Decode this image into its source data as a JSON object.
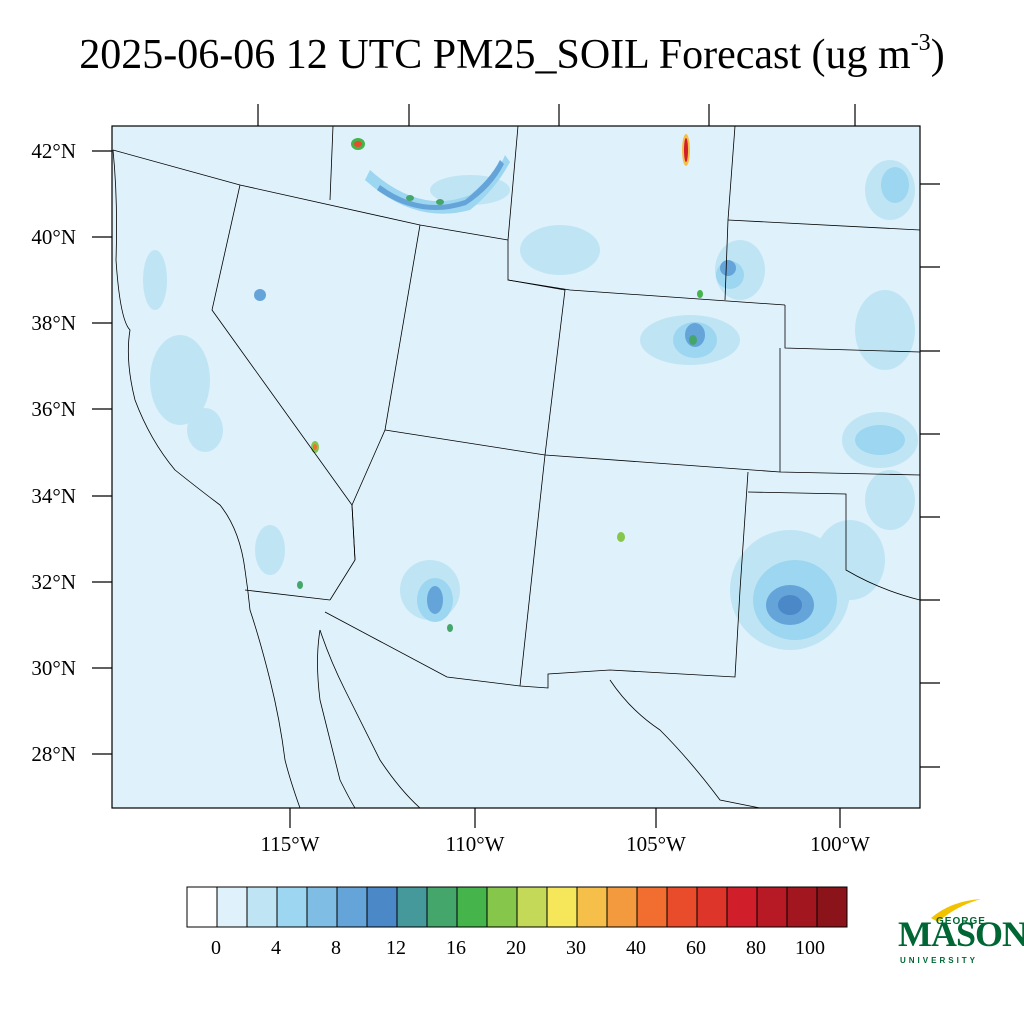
{
  "title": {
    "main": "2025-06-06 12 UTC PM25_SOIL Forecast (ug m",
    "exponent": "-3",
    "close": ")"
  },
  "map": {
    "lat_labels": [
      "42°N",
      "40°N",
      "38°N",
      "36°N",
      "34°N",
      "32°N",
      "30°N",
      "28°N"
    ],
    "lon_labels": [
      "115°W",
      "110°W",
      "105°W",
      "100°W"
    ],
    "background_color": "#dff1fb"
  },
  "colorbar": {
    "colors": [
      "#ffffff",
      "#dff1fb",
      "#bfe5f5",
      "#9dd6f0",
      "#80bde4",
      "#64a4d9",
      "#4a88c7",
      "#46999b",
      "#45a66b",
      "#45b44a",
      "#86c64a",
      "#c5d958",
      "#f6e75a",
      "#f6bf4a",
      "#f49a3e",
      "#f16d30",
      "#e84c2b",
      "#dd3529",
      "#d01f2a",
      "#b81a25",
      "#a2171f",
      "#8b131a"
    ],
    "labels": [
      "0",
      "4",
      "8",
      "12",
      "16",
      "20",
      "30",
      "40",
      "60",
      "80",
      "100"
    ]
  },
  "logo": {
    "top": "GEORGE",
    "main": "MASON",
    "bottom": "UNIVERSITY"
  }
}
